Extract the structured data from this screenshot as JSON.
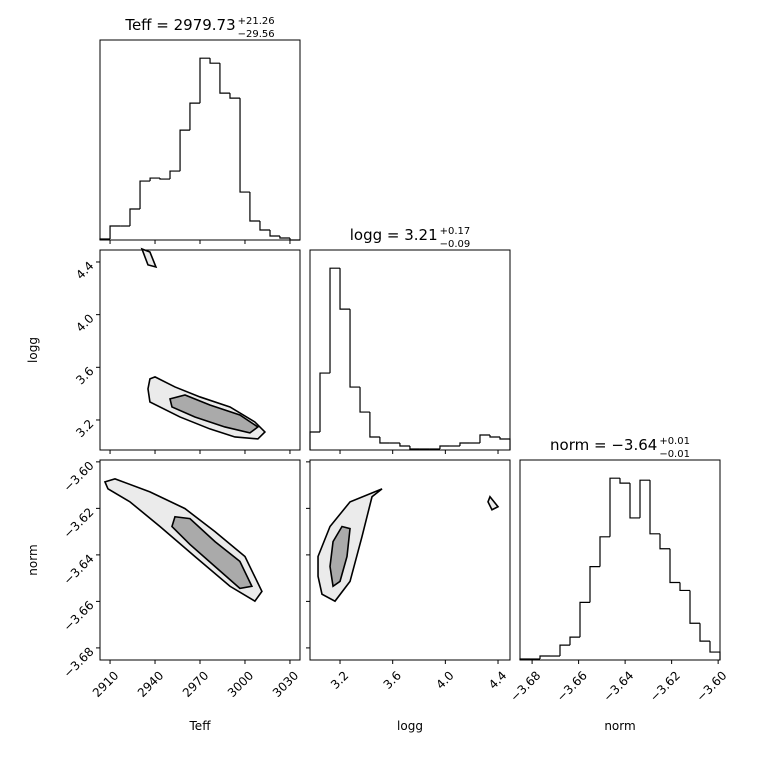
{
  "chart_data": {
    "type": "corner",
    "parameters": [
      {
        "label": "Teff",
        "title": "Teff = 2979.73",
        "plus": "+21.26",
        "minus": "−29.56",
        "lim": [
          2903.3,
          3036.7
        ],
        "ticks": [
          2910,
          2940,
          2970,
          3000,
          3030
        ],
        "bins": [
          2903.3,
          2910.0,
          2916.7,
          2923.3,
          2930.0,
          2936.7,
          2943.3,
          2950.0,
          2956.7,
          2963.3,
          2970.0,
          2976.7,
          2983.3,
          2990.0,
          2996.7,
          3003.3,
          3010.0,
          3016.7,
          3023.3,
          3030.0,
          3036.7
        ],
        "counts": [
          1,
          14,
          14,
          31,
          59,
          62,
          61,
          69,
          110,
          137,
          182,
          177,
          147,
          142,
          48,
          19,
          10,
          4,
          2,
          0
        ]
      },
      {
        "label": "logg",
        "title": "logg = 3.21",
        "plus": "+0.17",
        "minus": "−0.09",
        "lim": [
          2.972,
          4.491
        ],
        "ticks": [
          3.2,
          3.6,
          {
            "value": 4,
            "label": "4.0"
          },
          4.4
        ],
        "bins": [
          2.972,
          3.048,
          3.124,
          3.2,
          3.276,
          3.352,
          3.427,
          3.503,
          3.579,
          3.655,
          3.731,
          3.807,
          3.883,
          3.959,
          4.035,
          4.111,
          4.187,
          4.263,
          4.339,
          4.415,
          4.491
        ],
        "counts": [
          18,
          77,
          182,
          141,
          63,
          38,
          13,
          7,
          7,
          4,
          1,
          1,
          1,
          4,
          4,
          7,
          7,
          15,
          13,
          11
        ]
      },
      {
        "label": "norm",
        "title": "norm = −3.64",
        "plus": "+0.01",
        "minus": "−0.01",
        "lim": [
          -3.6852,
          -3.5992
        ],
        "ticks": [
          {
            "value": -3.68,
            "label": "−3.68"
          },
          {
            "value": -3.66,
            "label": "−3.66"
          },
          {
            "value": -3.64,
            "label": "−3.64"
          },
          {
            "value": -3.62,
            "label": "−3.62"
          },
          {
            "value": -3.6,
            "label": "−3.60"
          }
        ],
        "bins": [
          -3.6852,
          -3.6809,
          -3.6766,
          -3.6723,
          -3.668,
          -3.6637,
          -3.6594,
          -3.6551,
          -3.6508,
          -3.6465,
          -3.6422,
          -3.6379,
          -3.6336,
          -3.6293,
          -3.625,
          -3.6207,
          -3.6164,
          -3.6121,
          -3.6078,
          -3.6035,
          -3.5992
        ],
        "counts": [
          1,
          1,
          4,
          4,
          15,
          23,
          58,
          94,
          124,
          183,
          178,
          143,
          181,
          127,
          112,
          78,
          70,
          37,
          19,
          8
        ]
      }
    ],
    "panels": [
      {
        "contours": [
          {
            "x": [
              2936.6,
              2940,
              2953.3,
              2970,
              2990,
              3006.6,
              3013.3,
              3008.6,
              2993.3,
              2976.6,
              2956.6,
              2936.6,
              2935.3
            ],
            "y": [
              3.512,
              3.527,
              3.451,
              3.375,
              3.299,
              3.185,
              3.109,
              3.056,
              3.071,
              3.132,
              3.223,
              3.337,
              3.436
            ]
          },
          {
            "x": [
              2950,
              2960,
              2976.6,
              2996.6,
              3008.6,
              3003.3,
              2986.6,
              2966.6,
              2951.3
            ],
            "y": [
              3.36,
              3.39,
              3.314,
              3.238,
              3.147,
              3.102,
              3.147,
              3.223,
              3.299
            ]
          },
          {
            "x": [
              2931.3,
              2936.6,
              2940.6,
              2935.3,
              2933.3
            ],
            "y": [
              4.499,
              4.476,
              4.362,
              4.378,
              4.438
            ]
          }
        ]
      },
      {
        "contours": [
          {
            "x": [
              2906.6,
              2913.3,
              2936.6,
              2960,
              2980,
              3000,
              3011.3,
              3006.6,
              2990,
              2966.6,
              2943.3,
              2923.3,
              2908.6
            ],
            "y": [
              -3.6086,
              -3.6073,
              -3.6129,
              -3.6201,
              -3.63,
              -3.6407,
              -3.6557,
              -3.6599,
              -3.6535,
              -3.6407,
              -3.6278,
              -3.6172,
              -3.6116
            ]
          },
          {
            "x": [
              2953.3,
              2963.3,
              2980,
              2996.6,
              3004.6,
              2996.6,
              2980,
              2963.3,
              2951.3
            ],
            "y": [
              -3.6236,
              -3.6244,
              -3.6343,
              -3.6428,
              -3.6535,
              -3.6544,
              -3.645,
              -3.6355,
              -3.6278
            ]
          }
        ]
      },
      {
        "contours": [
          {
            "x": [
              3.033,
              3.033,
              3.124,
              3.276,
              3.519,
              3.443,
              3.367,
              3.276,
              3.162,
              3.063
            ],
            "y": [
              -3.6492,
              -3.6407,
              -3.6278,
              -3.6172,
              -3.6116,
              -3.615,
              -3.6321,
              -3.6514,
              -3.6599,
              -3.6569
            ]
          },
          {
            "x": [
              3.124,
              3.147,
              3.215,
              3.276,
              3.253,
              3.2,
              3.147
            ],
            "y": [
              -3.645,
              -3.6343,
              -3.6278,
              -3.6287,
              -3.6407,
              -3.6514,
              -3.6535
            ]
          },
          {
            "x": [
              4.339,
              4.4,
              4.354,
              4.324
            ],
            "y": [
              -3.615,
              -3.6193,
              -3.6206,
              -3.6172
            ]
          }
        ]
      }
    ]
  }
}
